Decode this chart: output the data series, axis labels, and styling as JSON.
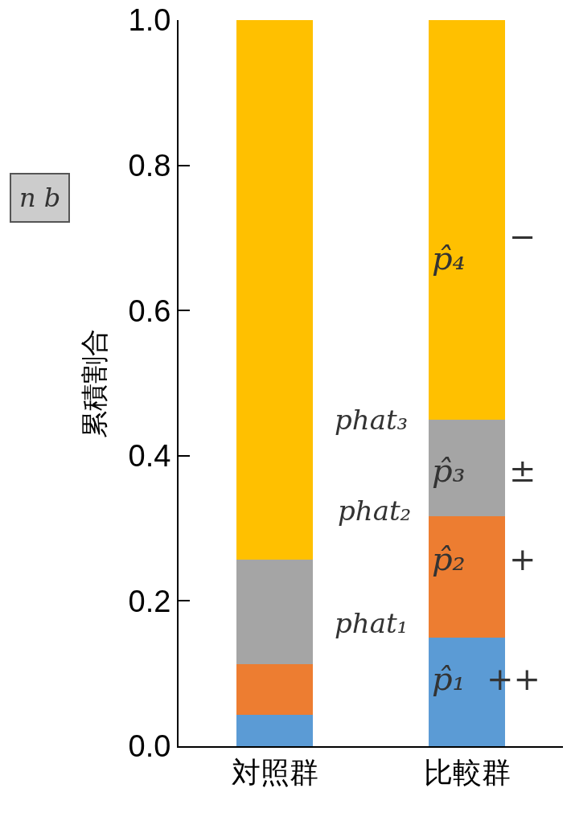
{
  "chart_data": {
    "type": "bar",
    "stacked": true,
    "ylabel": "累積割合",
    "categories": [
      "対照群",
      "比較群"
    ],
    "series": [
      {
        "color": "#5b9bd5",
        "values": [
          0.043,
          0.15
        ]
      },
      {
        "color": "#ed7d31",
        "values": [
          0.07,
          0.167
        ]
      },
      {
        "color": "#a5a5a5",
        "values": [
          0.144,
          0.133
        ]
      },
      {
        "color": "#ffc000",
        "values": [
          0.743,
          0.55
        ]
      }
    ],
    "ylim": [
      0,
      1
    ],
    "yticks": [
      {
        "value": 0,
        "label": "0.0"
      },
      {
        "value": 0.2,
        "label": "0.2"
      },
      {
        "value": 0.4,
        "label": "0.4"
      },
      {
        "value": 0.6,
        "label": "0.6"
      },
      {
        "value": 0.8,
        "label": "0.8"
      },
      {
        "value": 1,
        "label": "1.0"
      }
    ],
    "grid": false,
    "annotations": [
      "p̂₁",
      "p̂₂",
      "p̂₃",
      "p̂₄",
      "++",
      "+",
      "±",
      "−",
      "phat₁",
      "phat₂",
      "phat₃",
      "n b"
    ]
  }
}
